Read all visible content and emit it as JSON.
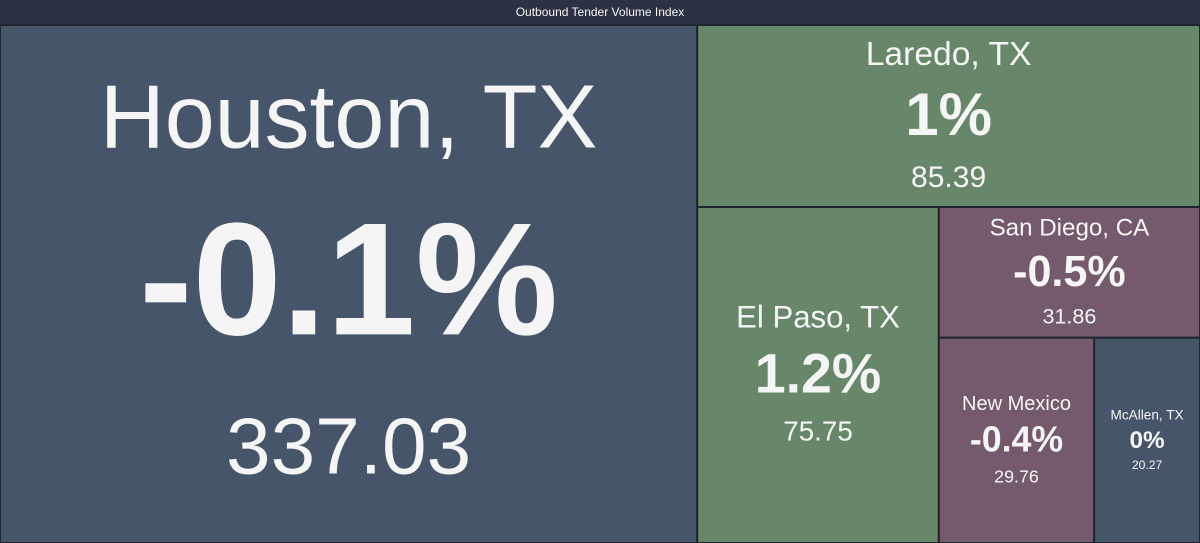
{
  "chart_data": {
    "type": "treemap",
    "title": "Outbound Tender Volume Index",
    "categories": [
      "Houston, TX",
      "Laredo, TX",
      "El Paso, TX",
      "San Diego, CA",
      "New Mexico",
      "McAllen, TX"
    ],
    "values": [
      337.03,
      85.39,
      75.75,
      31.86,
      29.76,
      20.27
    ],
    "changes": [
      -0.1,
      1,
      1.2,
      -0.5,
      -0.4,
      0
    ],
    "change_labels": [
      "-0.1%",
      "1%",
      "1.2%",
      "-0.5%",
      "-0.4%",
      "0%"
    ],
    "colors": [
      "#465569",
      "#68876a",
      "#68876a",
      "#745a6c",
      "#745a6c",
      "#465569"
    ]
  }
}
